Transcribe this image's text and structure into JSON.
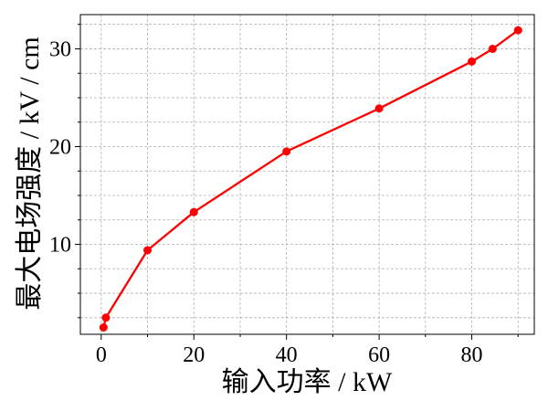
{
  "chart_data": {
    "type": "line",
    "xlabel": "输入功率 / kW",
    "ylabel": "最大电场强度 / kV / cm",
    "xlim": [
      -4.5,
      93.5
    ],
    "ylim": [
      0.8,
      33.5
    ],
    "x_ticks": [
      0,
      20,
      40,
      60,
      80
    ],
    "y_ticks": [
      10,
      20,
      30
    ],
    "x_minor_ticks": [
      10,
      30,
      50,
      70,
      90
    ],
    "y_minor_ticks": [
      2.5,
      5,
      7.5,
      12.5,
      15,
      17.5,
      22.5,
      25,
      27.5,
      32.5
    ],
    "grid": true,
    "line_color": "#ff0000",
    "series": [
      {
        "x": [
          0.5,
          1,
          10,
          20,
          40,
          60,
          80,
          84.5,
          90
        ],
        "y": [
          1.5,
          2.5,
          9.4,
          13.3,
          19.5,
          23.9,
          28.7,
          30.0,
          31.9
        ]
      }
    ]
  }
}
